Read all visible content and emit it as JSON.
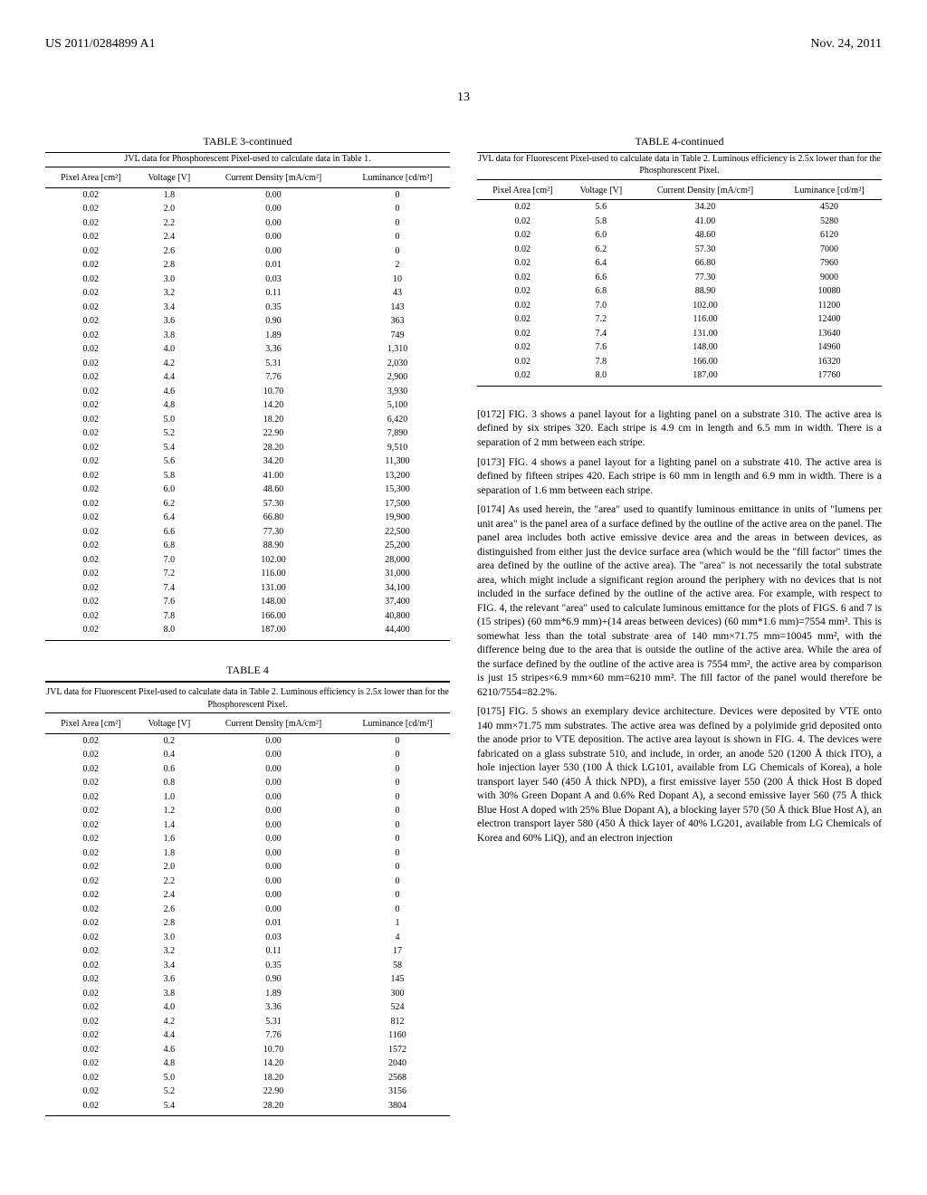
{
  "header": {
    "doc_id": "US 2011/0284899 A1",
    "date": "Nov. 24, 2011",
    "page": "13"
  },
  "table3": {
    "title": "TABLE 3-continued",
    "caption": "JVL data for Phosphorescent Pixel-used to calculate data in Table 1.",
    "columns": [
      "Pixel Area\n[cm²]",
      "Voltage\n[V]",
      "Current Density\n[mA/cm²]",
      "Luminance\n[cd/m²]"
    ],
    "rows": [
      [
        "0.02",
        "1.8",
        "0.00",
        "0"
      ],
      [
        "0.02",
        "2.0",
        "0.00",
        "0"
      ],
      [
        "0.02",
        "2.2",
        "0.00",
        "0"
      ],
      [
        "0.02",
        "2.4",
        "0.00",
        "0"
      ],
      [
        "0.02",
        "2.6",
        "0.00",
        "0"
      ],
      [
        "0.02",
        "2.8",
        "0.01",
        "2"
      ],
      [
        "0.02",
        "3.0",
        "0.03",
        "10"
      ],
      [
        "0.02",
        "3.2",
        "0.11",
        "43"
      ],
      [
        "0.02",
        "3.4",
        "0.35",
        "143"
      ],
      [
        "0.02",
        "3.6",
        "0.90",
        "363"
      ],
      [
        "0.02",
        "3.8",
        "1.89",
        "749"
      ],
      [
        "0.02",
        "4.0",
        "3.36",
        "1,310"
      ],
      [
        "0.02",
        "4.2",
        "5.31",
        "2,030"
      ],
      [
        "0.02",
        "4.4",
        "7.76",
        "2,900"
      ],
      [
        "0.02",
        "4.6",
        "10.70",
        "3,930"
      ],
      [
        "0.02",
        "4.8",
        "14.20",
        "5,100"
      ],
      [
        "0.02",
        "5.0",
        "18.20",
        "6,420"
      ],
      [
        "0.02",
        "5.2",
        "22.90",
        "7,890"
      ],
      [
        "0.02",
        "5.4",
        "28.20",
        "9,510"
      ],
      [
        "0.02",
        "5.6",
        "34.20",
        "11,300"
      ],
      [
        "0.02",
        "5.8",
        "41.00",
        "13,200"
      ],
      [
        "0.02",
        "6.0",
        "48.60",
        "15,300"
      ],
      [
        "0.02",
        "6.2",
        "57.30",
        "17,500"
      ],
      [
        "0.02",
        "6.4",
        "66.80",
        "19,900"
      ],
      [
        "0.02",
        "6.6",
        "77.30",
        "22,500"
      ],
      [
        "0.02",
        "6.8",
        "88.90",
        "25,200"
      ],
      [
        "0.02",
        "7.0",
        "102.00",
        "28,000"
      ],
      [
        "0.02",
        "7.2",
        "116.00",
        "31,000"
      ],
      [
        "0.02",
        "7.4",
        "131.00",
        "34,100"
      ],
      [
        "0.02",
        "7.6",
        "148.00",
        "37,400"
      ],
      [
        "0.02",
        "7.8",
        "166.00",
        "40,800"
      ],
      [
        "0.02",
        "8.0",
        "187.00",
        "44,400"
      ]
    ]
  },
  "table4": {
    "title": "TABLE 4",
    "caption": "JVL data for Fluorescent Pixel-used to calculate data in Table 2. Luminous efficiency is 2.5x lower than for the Phosphorescent Pixel.",
    "columns": [
      "Pixel Area\n[cm²]",
      "Voltage\n[V]",
      "Current Density\n[mA/cm²]",
      "Luminance\n[cd/m²]"
    ],
    "rows": [
      [
        "0.02",
        "0.2",
        "0.00",
        "0"
      ],
      [
        "0.02",
        "0.4",
        "0.00",
        "0"
      ],
      [
        "0.02",
        "0.6",
        "0.00",
        "0"
      ],
      [
        "0.02",
        "0.8",
        "0.00",
        "0"
      ],
      [
        "0.02",
        "1.0",
        "0.00",
        "0"
      ],
      [
        "0.02",
        "1.2",
        "0.00",
        "0"
      ],
      [
        "0.02",
        "1.4",
        "0.00",
        "0"
      ],
      [
        "0.02",
        "1.6",
        "0.00",
        "0"
      ],
      [
        "0.02",
        "1.8",
        "0.00",
        "0"
      ],
      [
        "0.02",
        "2.0",
        "0.00",
        "0"
      ],
      [
        "0.02",
        "2.2",
        "0.00",
        "0"
      ],
      [
        "0.02",
        "2.4",
        "0.00",
        "0"
      ],
      [
        "0.02",
        "2.6",
        "0.00",
        "0"
      ],
      [
        "0.02",
        "2.8",
        "0.01",
        "1"
      ],
      [
        "0.02",
        "3.0",
        "0.03",
        "4"
      ],
      [
        "0.02",
        "3.2",
        "0.11",
        "17"
      ],
      [
        "0.02",
        "3.4",
        "0.35",
        "58"
      ],
      [
        "0.02",
        "3.6",
        "0.90",
        "145"
      ],
      [
        "0.02",
        "3.8",
        "1.89",
        "300"
      ],
      [
        "0.02",
        "4.0",
        "3.36",
        "524"
      ],
      [
        "0.02",
        "4.2",
        "5.31",
        "812"
      ],
      [
        "0.02",
        "4.4",
        "7.76",
        "1160"
      ],
      [
        "0.02",
        "4.6",
        "10.70",
        "1572"
      ],
      [
        "0.02",
        "4.8",
        "14.20",
        "2040"
      ],
      [
        "0.02",
        "5.0",
        "18.20",
        "2568"
      ],
      [
        "0.02",
        "5.2",
        "22.90",
        "3156"
      ],
      [
        "0.02",
        "5.4",
        "28.20",
        "3804"
      ]
    ]
  },
  "table4c": {
    "title": "TABLE 4-continued",
    "caption": "JVL data for Fluorescent Pixel-used to calculate data in Table 2. Luminous efficiency is 2.5x lower than for the Phosphorescent Pixel.",
    "columns": [
      "Pixel Area\n[cm²]",
      "Voltage\n[V]",
      "Current Density\n[mA/cm²]",
      "Luminance\n[cd/m²]"
    ],
    "rows": [
      [
        "0.02",
        "5.6",
        "34.20",
        "4520"
      ],
      [
        "0.02",
        "5.8",
        "41.00",
        "5280"
      ],
      [
        "0.02",
        "6.0",
        "48.60",
        "6120"
      ],
      [
        "0.02",
        "6.2",
        "57.30",
        "7000"
      ],
      [
        "0.02",
        "6.4",
        "66.80",
        "7960"
      ],
      [
        "0.02",
        "6.6",
        "77.30",
        "9000"
      ],
      [
        "0.02",
        "6.8",
        "88.90",
        "10080"
      ],
      [
        "0.02",
        "7.0",
        "102.00",
        "11200"
      ],
      [
        "0.02",
        "7.2",
        "116.00",
        "12400"
      ],
      [
        "0.02",
        "7.4",
        "131.00",
        "13640"
      ],
      [
        "0.02",
        "7.6",
        "148.00",
        "14960"
      ],
      [
        "0.02",
        "7.8",
        "166.00",
        "16320"
      ],
      [
        "0.02",
        "8.0",
        "187.00",
        "17760"
      ]
    ]
  },
  "paragraphs": {
    "p0172": "[0172]    FIG. 3 shows a panel layout for a lighting panel on a substrate 310. The active area is defined by six stripes 320. Each stripe is 4.9 cm in length and 6.5 mm in width. There is a separation of 2 mm between each stripe.",
    "p0173": "[0173]    FIG. 4 shows a panel layout for a lighting panel on a substrate 410. The active area is defined by fifteen stripes 420. Each stripe is 60 mm in length and 6.9 mm in width. There is a separation of 1.6 mm between each stripe.",
    "p0174": "[0174]    As used herein, the \"area\" used to quantify luminous emittance in units of \"lumens per unit area\" is the panel area of a surface defined by the outline of the active area on the panel. The panel area includes both active emissive device area and the areas in between devices, as distinguished from either just the device surface area (which would be the \"fill factor\" times the area defined by the outline of the active area). The \"area\" is not necessarily the total substrate area, which might include a significant region around the periphery with no devices that is not included in the surface defined by the outline of the active area. For example, with respect to FIG. 4, the relevant \"area\" used to calculate luminous emittance for the plots of FIGS. 6 and 7 is (15 stripes) (60 mm*6.9 mm)+(14 areas between devices) (60 mm*1.6 mm)=7554 mm². This is somewhat less than the total substrate area of 140 mm×71.75 mm=10045 mm², with the difference being due to the area that is outside the outline of the active area. While the area of the surface defined by the outline of the active area is 7554 mm², the active area by comparison is just 15 stripes×6.9 mm×60 mm=6210 mm². The fill factor of the panel would therefore be 6210/7554=82.2%.",
    "p0175": "[0175]    FIG. 5 shows an exemplary device architecture. Devices were deposited by VTE onto 140 mm×71.75 mm substrates. The active area was defined by a polyimide grid deposited onto the anode prior to VTE deposition. The active area layout is shown in FIG. 4. The devices were fabricated on a glass substrate 510, and include, in order, an anode 520 (1200 Å thick ITO), a hole injection layer 530 (100 Å thick LG101, available from LG Chemicals of Korea), a hole transport layer 540 (450 Å thick NPD), a first emissive layer 550 (200 Å thick Host B doped with 30% Green Dopant A and 0.6% Red Dopant A), a second emissive layer 560 (75 Å thick Blue Host A doped with 25% Blue Dopant A), a blocking layer 570 (50 Å thick Blue Host A), an electron transport layer 580 (450 Å thick layer of 40% LG201, available from LG Chemicals of Korea and 60% LiQ), and an electron injection"
  }
}
